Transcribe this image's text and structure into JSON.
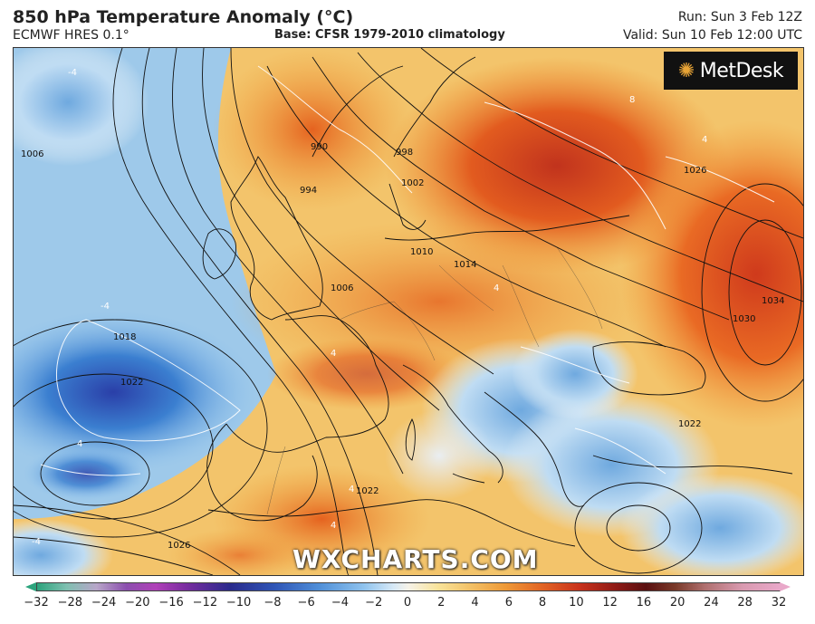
{
  "header": {
    "title": "850 hPa Temperature Anomaly (°C)",
    "model": "ECMWF HRES 0.1°",
    "base": "Base: CFSR 1979-2010 climatology",
    "run": "Run: Sun 3 Feb 12Z",
    "valid": "Valid: Sun 10 Feb 12:00 UTC"
  },
  "branding": {
    "logo_text": "MetDesk",
    "watermark": "WXCHARTS.COM"
  },
  "isobar_labels": [
    "1006",
    "990",
    "998",
    "994",
    "1002",
    "1006",
    "1010",
    "1014",
    "1018",
    "1022",
    "1026",
    "1030",
    "1034",
    "1022",
    "1026",
    "1022"
  ],
  "anomaly_labels": [
    "-4",
    "4",
    "4",
    "4",
    "-4",
    "4",
    "-4",
    "4",
    "4",
    "8"
  ],
  "colorbar": {
    "ticks": [
      "−32",
      "−28",
      "−24",
      "−20",
      "−16",
      "−12",
      "−10",
      "−8",
      "−6",
      "−4",
      "−2",
      "0",
      "2",
      "4",
      "6",
      "8",
      "10",
      "12",
      "16",
      "20",
      "24",
      "28",
      "32"
    ],
    "left_arrow_color": "#2ca47d",
    "right_arrow_color": "#e9a8c9"
  }
}
